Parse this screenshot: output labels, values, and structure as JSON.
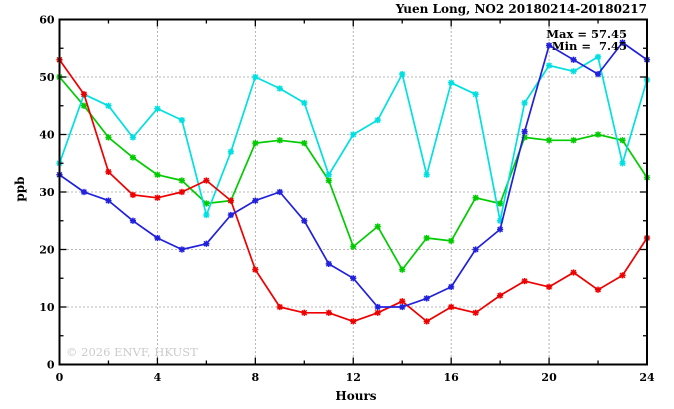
{
  "title": "Yuen Long, NO2 20180214-20180217",
  "legend": {
    "max_label": "Max = 57.45",
    "min_label": "Min =  7.45"
  },
  "watermark": "© 2026 ENVF, HKUST",
  "chart_data": {
    "type": "line",
    "title": "Yuen Long, NO2 20180214-20180217",
    "xlabel": "Hours",
    "ylabel": "ppb",
    "xlim": [
      0,
      24
    ],
    "ylim": [
      0,
      60
    ],
    "grid": "dotted at major ticks, boxed axes with mirrored inward ticks",
    "legend_position": "top-right inside plot (text annotations only)",
    "annotations": {
      "max": 57.45,
      "min": 7.45
    },
    "x_ticks_major": [
      0,
      4,
      8,
      12,
      16,
      20,
      24
    ],
    "x_ticks_minor": [
      2,
      6,
      10,
      14,
      18,
      22
    ],
    "y_ticks_major": [
      0,
      10,
      20,
      30,
      40,
      50,
      60
    ],
    "y_ticks_minor": [
      5,
      15,
      25,
      35,
      45,
      55
    ],
    "x": [
      0,
      1,
      2,
      3,
      4,
      5,
      6,
      7,
      8,
      9,
      10,
      11,
      12,
      13,
      14,
      15,
      16,
      17,
      18,
      19,
      20,
      21,
      22,
      23,
      24
    ],
    "series": [
      {
        "name": "series-green",
        "color": "#00cc00",
        "values": [
          50,
          45,
          39.5,
          36,
          33,
          32,
          28,
          28.5,
          38.5,
          39,
          38.5,
          32,
          20.5,
          24,
          16.5,
          22,
          21.5,
          29,
          28,
          39.5,
          39,
          39,
          40,
          39,
          32.5
        ]
      },
      {
        "name": "series-cyan",
        "color": "#00e0e0",
        "values": [
          35,
          47,
          45,
          39.5,
          44.5,
          42.5,
          26,
          37,
          50,
          48,
          45.5,
          33,
          40,
          42.5,
          50.5,
          33,
          49,
          47,
          25,
          45.5,
          52,
          51,
          53.5,
          35,
          49.5
        ]
      },
      {
        "name": "series-red",
        "color": "#ee0000",
        "values": [
          53,
          47,
          33.5,
          29.5,
          29,
          30,
          32,
          28.5,
          16.5,
          10,
          9,
          9,
          7.5,
          9,
          11,
          7.5,
          10,
          9,
          12,
          14.5,
          13.5,
          16,
          13,
          15.5,
          22
        ]
      },
      {
        "name": "series-blue",
        "color": "#2020dd",
        "values": [
          33,
          30,
          28.5,
          25,
          22,
          20,
          21,
          26,
          28.5,
          30,
          25,
          17.5,
          15,
          10,
          10,
          11.5,
          13.5,
          20,
          23.5,
          40.5,
          55.5,
          53,
          50.5,
          56,
          53
        ]
      }
    ]
  },
  "colors": {
    "background": "#ffffff",
    "axis": "#000000",
    "grid": "#444444",
    "watermark": "#cbcbcb"
  }
}
